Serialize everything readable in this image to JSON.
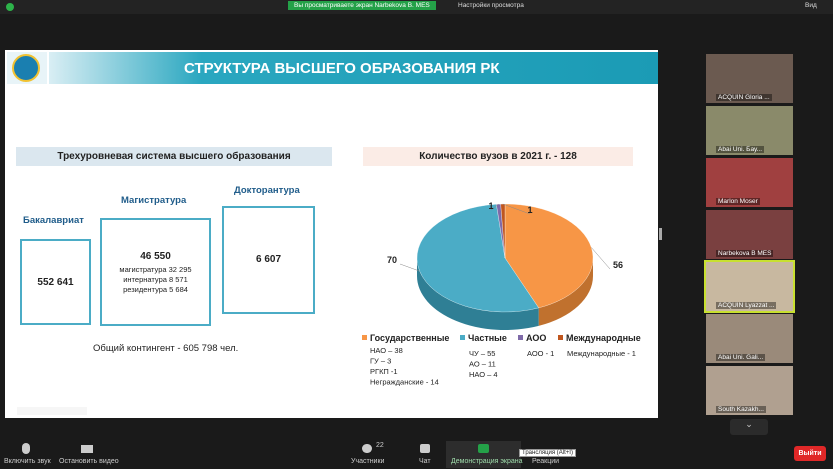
{
  "topbar": {
    "sharing": "Вы просматриваете экран Narbekova B. MES",
    "view_options": "Настройки просмотра",
    "view": "Вид"
  },
  "slide": {
    "title": "СТРУКТУРА ВЫСШЕГО ОБРАЗОВАНИЯ РК",
    "left": {
      "heading": "Трехуровневая система высшего образования",
      "levels": [
        {
          "name": "Бакалавриат",
          "total": "552 641",
          "details": []
        },
        {
          "name": "Магистратура",
          "total": "46 550",
          "details": [
            "магистратура 32 295",
            "интернатура 8 571",
            "резидентура 5 684"
          ]
        },
        {
          "name": "Докторантура",
          "total": "6 607",
          "details": []
        }
      ],
      "footer": "Общий контингент - 605 798 чел."
    },
    "pie": {
      "title": "Количество вузов в 2021 г. - 128",
      "slices": [
        {
          "name": "Государственные",
          "value": 56,
          "color": "#f79646",
          "side": "#c0712e",
          "items": [
            "НАО – 38",
            "ГУ – 3",
            "РГКП -1",
            "Негражданские - 14"
          ]
        },
        {
          "name": "Частные",
          "value": 70,
          "color": "#4bacc6",
          "side": "#2f7f95",
          "items": [
            "ЧУ – 55",
            "АО – 11",
            "НАО – 4"
          ]
        },
        {
          "name": "АОО",
          "value": 1,
          "color": "#7f6aa8",
          "side": "#5a4a7c",
          "items": [
            "АОО - 1"
          ]
        },
        {
          "name": "Международные",
          "value": 1,
          "color": "#c0561e",
          "side": "#8a3d14",
          "items": [
            "Международные - 1"
          ]
        }
      ]
    }
  },
  "participants": [
    "ACQUIN Gloria ...",
    "Abai Uni. Бау...",
    "Marlon Moser",
    "Narbekova B MES",
    "ACQUIN Lyazzat ...",
    "Abai Uni. Gali...",
    "South Kazakh..."
  ],
  "toolbar": {
    "audio": "Включить звук",
    "video": "Остановить видео",
    "participants": "Участники",
    "participants_count": "22",
    "chat": "Чат",
    "share": "Демонстрация экрана",
    "tooltip": "Трансляция (Alt+I)",
    "reactions": "Реакции",
    "leave": "Выйти"
  }
}
